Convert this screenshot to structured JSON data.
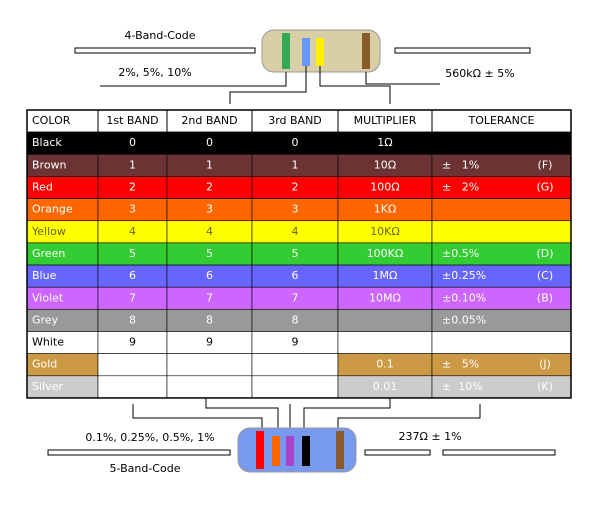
{
  "four_band": {
    "title": "4-Band-Code",
    "tolerances": "2%, 5%, 10%",
    "example": "560kΩ ± 5%"
  },
  "five_band": {
    "title": "5-Band-Code",
    "tolerances": "0.1%, 0.25%, 0.5%, 1%",
    "example": "237Ω ± 1%"
  },
  "table": {
    "header": [
      "COLOR",
      "1st BAND",
      "2nd BAND",
      "3rd BAND",
      "MULTIPLIER",
      "TOLERANCE"
    ],
    "rows": [
      {
        "color": "Black",
        "band1": "0",
        "band2": "0",
        "band3": "0",
        "multiplier": "1Ω",
        "tolerance": null,
        "code": null,
        "bg": "#000000",
        "fg": "#ffffff"
      },
      {
        "color": "Brown",
        "band1": "1",
        "band2": "1",
        "band3": "1",
        "multiplier": "10Ω",
        "tolerance": "±   1%",
        "code": "(F)",
        "bg": "#6b3333",
        "fg": "#ffffff"
      },
      {
        "color": "Red",
        "band1": "2",
        "band2": "2",
        "band3": "2",
        "multiplier": "100Ω",
        "tolerance": "±   2%",
        "code": "(G)",
        "bg": "#ff0000",
        "fg": "#ffffff"
      },
      {
        "color": "Orange",
        "band1": "3",
        "band2": "3",
        "band3": "3",
        "multiplier": "1KΩ",
        "tolerance": null,
        "code": null,
        "bg": "#ff6600",
        "fg": "#ffffff"
      },
      {
        "color": "Yellow",
        "band1": "4",
        "band2": "4",
        "band3": "4",
        "multiplier": "10KΩ",
        "tolerance": null,
        "code": null,
        "bg": "#ffff00",
        "fg": "#666600"
      },
      {
        "color": "Green",
        "band1": "5",
        "band2": "5",
        "band3": "5",
        "multiplier": "100KΩ",
        "tolerance": "±0.5%",
        "code": "(D)",
        "bg": "#33cc33",
        "fg": "#ffffff"
      },
      {
        "color": "Blue",
        "band1": "6",
        "band2": "6",
        "band3": "6",
        "multiplier": "1MΩ",
        "tolerance": "±0.25%",
        "code": "(C)",
        "bg": "#6666ff",
        "fg": "#ffffff"
      },
      {
        "color": "Violet",
        "band1": "7",
        "band2": "7",
        "band3": "7",
        "multiplier": "10MΩ",
        "tolerance": "±0.10%",
        "code": "(B)",
        "bg": "#cc66ff",
        "fg": "#ffffff"
      },
      {
        "color": "Grey",
        "band1": "8",
        "band2": "8",
        "band3": "8",
        "multiplier": null,
        "tolerance": "±0.05%",
        "code": null,
        "bg": "#999999",
        "fg": "#ffffff"
      },
      {
        "color": "White",
        "band1": "9",
        "band2": "9",
        "band3": "9",
        "multiplier": null,
        "tolerance": null,
        "code": null,
        "bg": "#ffffff",
        "fg": "#000000"
      },
      {
        "color": "Gold",
        "band1": null,
        "band2": null,
        "band3": null,
        "multiplier": "0.1",
        "tolerance": "±   5%",
        "code": "(J)",
        "bg": "#cc9944",
        "fg": "#ffffff"
      },
      {
        "color": "Silver",
        "band1": null,
        "band2": null,
        "band3": null,
        "multiplier": "0.01",
        "tolerance": "±  10%",
        "code": "(K)",
        "bg": "#cccccc",
        "fg": "#ffffff"
      }
    ]
  }
}
